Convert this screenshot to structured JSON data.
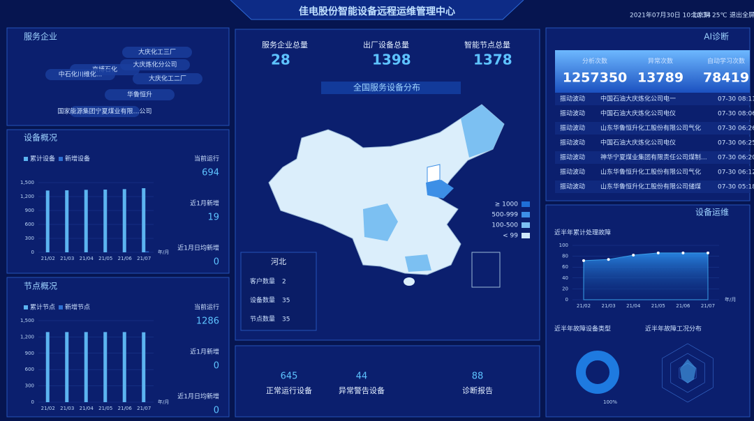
{
  "header": {
    "title": "佳电股份智能设备远程运维管理中心",
    "datetime": "2021年07月30日 10:10:34",
    "city": "北京",
    "weather": "阴",
    "temperature": "25℃",
    "exit": "退出全屏"
  },
  "enterprises": {
    "title": "服务企业",
    "names": [
      "大庆化工三厂",
      "京博石化",
      "大庆炼化分公司",
      "中石化川维化...",
      "大庆化工二厂",
      "华鲁恒升",
      "国家能源集团宁夏煤业有限…公司"
    ]
  },
  "devices": {
    "title": "设备概况",
    "stats": [
      {
        "label": "当前运行",
        "value": 694
      },
      {
        "label": "近1月新增",
        "value": 19
      },
      {
        "label": "近1月日均新增",
        "value": 0
      }
    ]
  },
  "nodes": {
    "title": "节点概况",
    "stats": [
      {
        "label": "当前运行",
        "value": 1286
      },
      {
        "label": "近1月新增",
        "value": 0
      },
      {
        "label": "近1月日均新增",
        "value": 0
      }
    ]
  },
  "totals": [
    {
      "label": "服务企业总量",
      "value": 28
    },
    {
      "label": "出厂设备总量",
      "value": 1398
    },
    {
      "label": "智能节点总量",
      "value": 1378
    }
  ],
  "map": {
    "title": "全国服务设备分布",
    "legend": [
      {
        "label": "≥ 1000",
        "color": "#1f6fd6"
      },
      {
        "label": "500-999",
        "color": "#3d8fe6"
      },
      {
        "label": "100-500",
        "color": "#7cc0f2"
      },
      {
        "label": "< 99",
        "color": "#cfe8fa"
      }
    ]
  },
  "province": {
    "name": "河北",
    "rows": [
      {
        "label": "客户数量",
        "value": 2
      },
      {
        "label": "设备数量",
        "value": 35
      },
      {
        "label": "节点数量",
        "value": 35
      }
    ]
  },
  "status": [
    {
      "label": "正常运行设备",
      "value": 645
    },
    {
      "label": "异常警告设备",
      "value": 44
    },
    {
      "label": "诊断报告",
      "value": 88
    }
  ],
  "ai": {
    "title": "AI诊断",
    "counters": [
      {
        "label": "分析次数",
        "value": 1257350
      },
      {
        "label": "异常次数",
        "value": 13789
      },
      {
        "label": "自动学习次数",
        "value": 78419
      }
    ],
    "alerts": [
      {
        "type": "振动波动",
        "company": "中国石油大庆炼化公司电一",
        "time": "07-30 08:11"
      },
      {
        "type": "振动波动",
        "company": "中国石油大庆炼化公司电仪",
        "time": "07-30 08:06"
      },
      {
        "type": "振动波动",
        "company": "山东华鲁恒升化工股份有限公司气化",
        "time": "07-30 06:26"
      },
      {
        "type": "振动波动",
        "company": "中国石油大庆炼化公司电仪",
        "time": "07-30 06:25"
      },
      {
        "type": "振动波动",
        "company": "神华宁夏煤业集团有限责任公司煤制...",
        "time": "07-30 06:20"
      },
      {
        "type": "振动波动",
        "company": "山东华鲁恒升化工股份有限公司气化",
        "time": "07-30 06:12"
      },
      {
        "type": "振动波动",
        "company": "山东华鲁恒升化工股份有限公司储煤",
        "time": "07-30 05:18"
      }
    ]
  },
  "maintenance": {
    "title": "设备运维",
    "radar_title": "近半年故障工况分布"
  },
  "chart_data": [
    {
      "type": "bar",
      "categories": [
        "21/02",
        "21/03",
        "21/04",
        "21/05",
        "21/06",
        "21/07"
      ],
      "x_label": "年/月",
      "series": [
        {
          "name": "累计设备",
          "color": "#5cb4f0",
          "values": [
            1330,
            1335,
            1345,
            1350,
            1360,
            1380
          ]
        },
        {
          "name": "新增设备",
          "color": "#2d6fd2",
          "values": [
            0,
            0,
            0,
            0,
            0,
            19
          ]
        }
      ],
      "ylim": [
        0,
        1500
      ],
      "yticks": [
        0,
        300,
        600,
        900,
        {
          "value": 1200,
          "label": "1,200"
        },
        {
          "value": 1500,
          "label": "1,500"
        }
      ]
    },
    {
      "type": "bar",
      "categories": [
        "21/02",
        "21/03",
        "21/04",
        "21/05",
        "21/06",
        "21/07"
      ],
      "x_label": "年/月",
      "series": [
        {
          "name": "累计节点",
          "color": "#5cb4f0",
          "values": [
            1290,
            1290,
            1290,
            1290,
            1290,
            1286
          ]
        },
        {
          "name": "新增节点",
          "color": "#2d6fd2",
          "values": [
            0,
            0,
            0,
            0,
            0,
            0
          ]
        }
      ],
      "ylim": [
        0,
        1500
      ],
      "yticks": [
        0,
        300,
        600,
        900,
        {
          "value": 1200,
          "label": "1,200"
        },
        {
          "value": 1500,
          "label": "1,500"
        }
      ]
    },
    {
      "type": "area",
      "title": "近半年累计处理故障",
      "categories": [
        "21/02",
        "21/03",
        "21/04",
        "21/05",
        "21/06",
        "21/07"
      ],
      "x_label": "年/月",
      "values": [
        72,
        74,
        82,
        86,
        86,
        86
      ],
      "color": "#3aa0e8",
      "ylim": [
        0,
        100
      ],
      "yticks": [
        0,
        20,
        40,
        60,
        80,
        100
      ]
    },
    {
      "type": "pie",
      "title": "近半年故障设备类型",
      "values": [
        100
      ],
      "value_labels": [
        "100%"
      ],
      "color": "#1e7ae0"
    }
  ]
}
